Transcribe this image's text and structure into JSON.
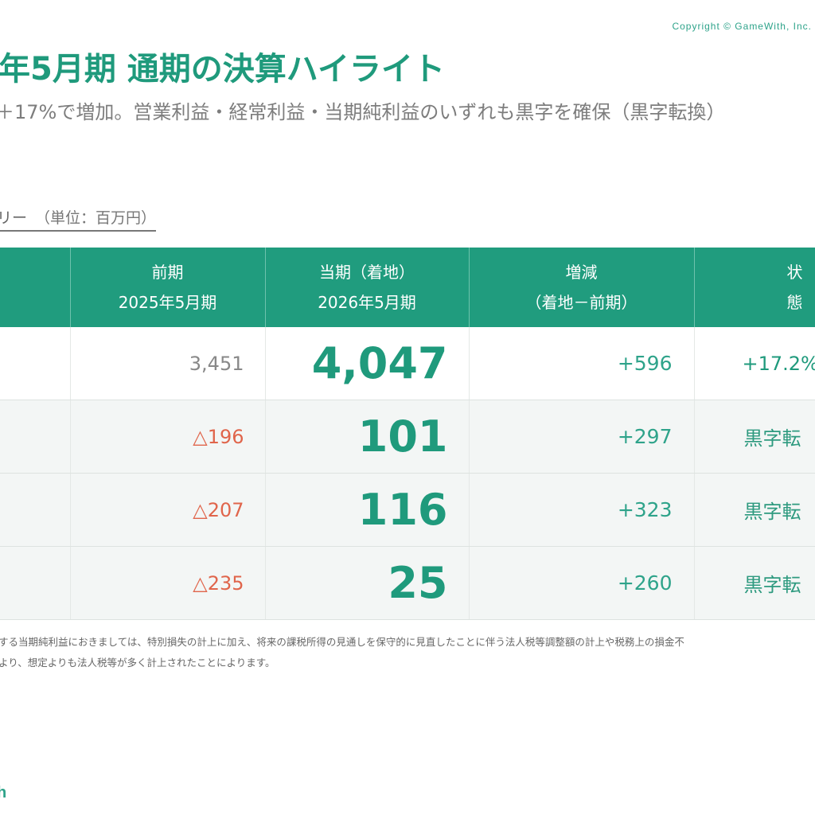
{
  "copyright": "Copyright © GameWith, Inc.",
  "title": "年5月期 通期の決算ハイライト",
  "subtitle": "＋17%で増加。営業利益・経常利益・当期純利益のいずれも黒字を確保（黒字転換）",
  "section": {
    "title": "リー",
    "unit": "（単位：百万円）"
  },
  "table": {
    "headers": {
      "prev_line1": "前期",
      "prev_line2": "2025年5月期",
      "curr_line1": "当期（着地）",
      "curr_line2": "2026年5月期",
      "diff_line1": "増減",
      "diff_line2": "（着地－前期）",
      "status": "状態"
    },
    "rows": [
      {
        "prev": "3,451",
        "curr": "4,047",
        "diff": "+596",
        "status": "+17.2%"
      },
      {
        "prev": "△196",
        "curr": "101",
        "diff": "+297",
        "status": "黒字転"
      },
      {
        "prev": "△207",
        "curr": "116",
        "diff": "+323",
        "status": "黒字転"
      },
      {
        "prev": "△235",
        "curr": "25",
        "diff": "+260",
        "status": "黒字転"
      }
    ]
  },
  "footnote": {
    "line1": "する当期純利益におきましては、特別損失の計上に加え、将来の課税所得の見通しを保守的に見直したことに伴う法人税等調整額の計上や税務上の損金不",
    "line2": "より、想定よりも法人税等が多く計上されたことによります。"
  },
  "brand": "h"
}
